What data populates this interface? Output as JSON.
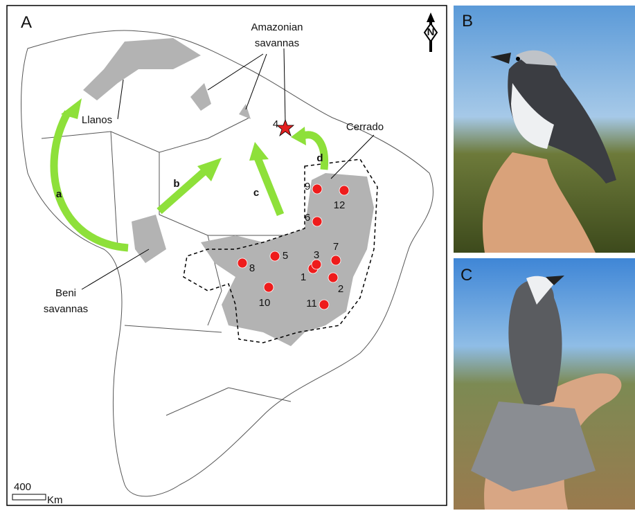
{
  "panels": [
    {
      "label": "A"
    },
    {
      "label": "B"
    },
    {
      "label": "C"
    }
  ],
  "map": {
    "regions": [
      {
        "lines": [
          "Llanos"
        ]
      },
      {
        "lines": [
          "Amazonian",
          "savannas"
        ]
      },
      {
        "lines": [
          "Cerrado"
        ]
      },
      {
        "lines": [
          "Beni",
          "savannas"
        ]
      }
    ],
    "arrows": [
      "a",
      "b",
      "c",
      "d"
    ],
    "star_label": "4",
    "sites": [
      {
        "label": "1"
      },
      {
        "label": "2"
      },
      {
        "label": "3"
      },
      {
        "label": "5"
      },
      {
        "label": "6"
      },
      {
        "label": "7"
      },
      {
        "label": "8"
      },
      {
        "label": "9"
      },
      {
        "label": "10"
      },
      {
        "label": "11"
      },
      {
        "label": "12"
      }
    ],
    "scale": {
      "distance": "400",
      "unit": "Km"
    }
  }
}
